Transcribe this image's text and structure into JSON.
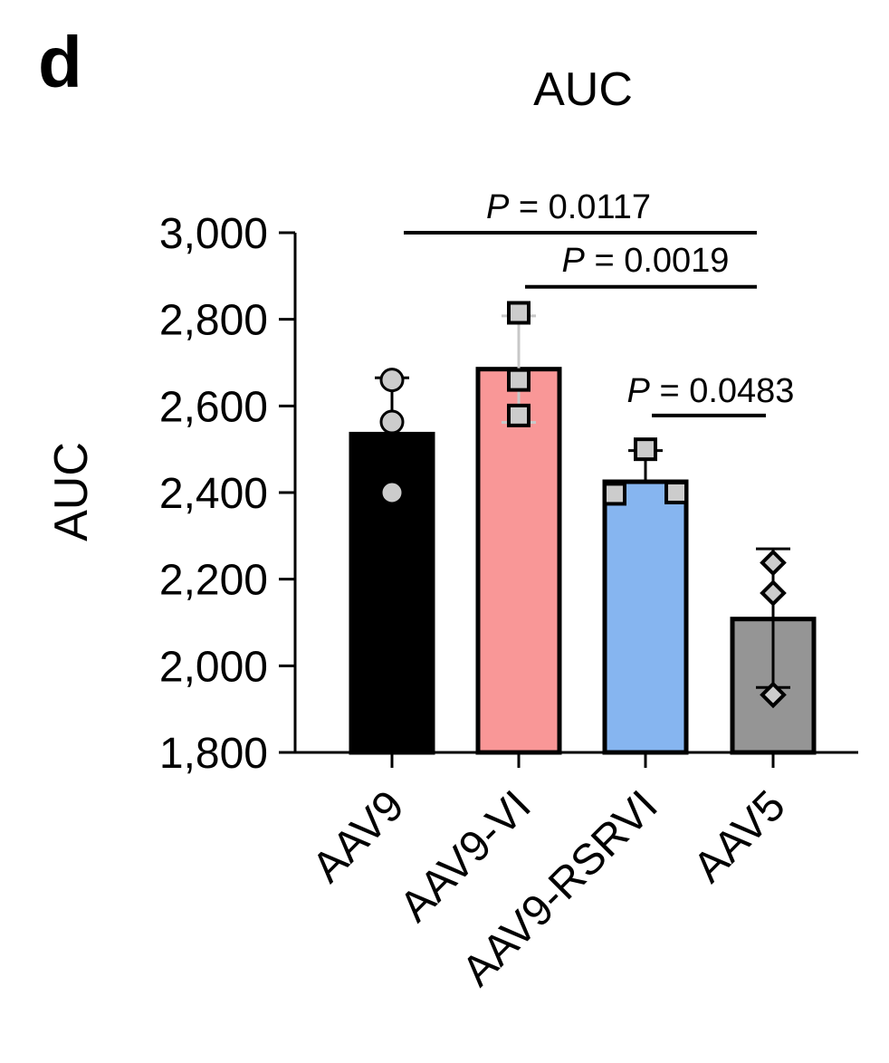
{
  "panel_label": "d",
  "chart_data": {
    "type": "bar",
    "title": "AUC",
    "xlabel": "",
    "ylabel": "AUC",
    "ylim": [
      1800,
      3000
    ],
    "yticks": [
      1800,
      2000,
      2200,
      2400,
      2600,
      2800,
      3000
    ],
    "ytick_labels": [
      "1,800",
      "2,000",
      "2,200",
      "2,400",
      "2,600",
      "2,800",
      "3,000"
    ],
    "grid": false,
    "legend": "none",
    "categories": [
      "AAV9",
      "AAV9-VI",
      "AAV9-RSRVI",
      "AAV5"
    ],
    "values": [
      2535,
      2685,
      2425,
      2108
    ],
    "error_high": [
      2665,
      2808,
      2497,
      2270
    ],
    "error_low": [
      2535,
      2562,
      2425,
      1950
    ],
    "points": [
      [
        2660,
        2563,
        2400
      ],
      [
        2815,
        2660,
        2578
      ],
      [
        2500,
        2397,
        2400
      ],
      [
        2238,
        2168,
        1933
      ]
    ],
    "markers": [
      "circle",
      "square",
      "square",
      "diamond"
    ],
    "colors": [
      "#000000",
      "#f99797",
      "#86b5f0",
      "#959595"
    ],
    "point_color": "#cccccc",
    "comparisons": [
      {
        "from": "AAV9",
        "to": "AAV5",
        "label_italic": "P",
        "label_rest": " = 0.0117",
        "y": 3000
      },
      {
        "from": "AAV9-VI",
        "to": "AAV5",
        "label_italic": "P",
        "label_rest": " = 0.0019",
        "y": 2875
      },
      {
        "from": "AAV9-RSRVI",
        "to": "AAV5",
        "label_italic": "P",
        "label_rest": " = 0.0483",
        "y": 2578
      }
    ]
  }
}
